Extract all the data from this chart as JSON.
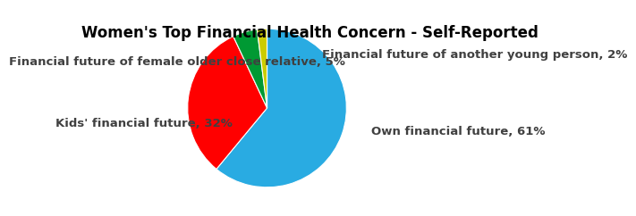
{
  "title": "Women's Top Financial Health Concern - Self-Reported",
  "labels": [
    "Own financial future, 61%",
    "Kids' financial future, 32%",
    "Financial future of female older close relative, 5%",
    "Financial future of another young person, 2%"
  ],
  "values": [
    61,
    32,
    5,
    2
  ],
  "colors": [
    "#29ABE2",
    "#FF0000",
    "#009933",
    "#CCCC00"
  ],
  "startangle": 90,
  "title_fontsize": 12,
  "label_fontsize": 9.5,
  "title_fontweight": "bold",
  "label_color": "#404040"
}
